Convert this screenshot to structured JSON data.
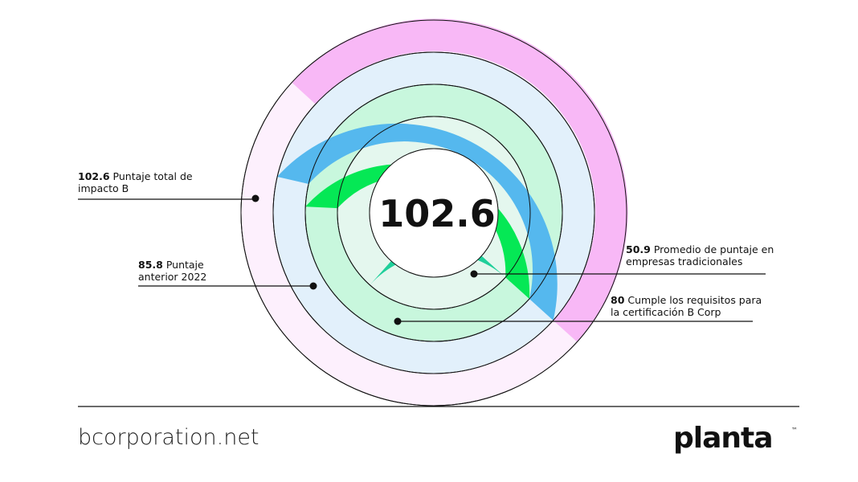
{
  "chart_data": {
    "type": "radial_bar",
    "center_value": 102.6,
    "series": [
      {
        "name": "Puntaje total de impacto B",
        "value": 102.6,
        "color": "#f8b8f6",
        "track": "#fdf0fd"
      },
      {
        "name": "Puntaje anterior 2022",
        "value": 85.8,
        "color": "#55b8ee",
        "track": "#e2f0fb"
      },
      {
        "name": "Cumple los requisitos para la certificación B Corp",
        "value": 80,
        "color": "#05e855",
        "track": "#c8f7dd"
      },
      {
        "name": "Promedio de puntaje en empresas tradicionales",
        "value": 50.9,
        "color": "#1fcf9a",
        "track": "#e4f7ee"
      }
    ]
  },
  "footer": {
    "source": "bcorporation.net",
    "brand": "planta",
    "brand_mark": "™"
  }
}
